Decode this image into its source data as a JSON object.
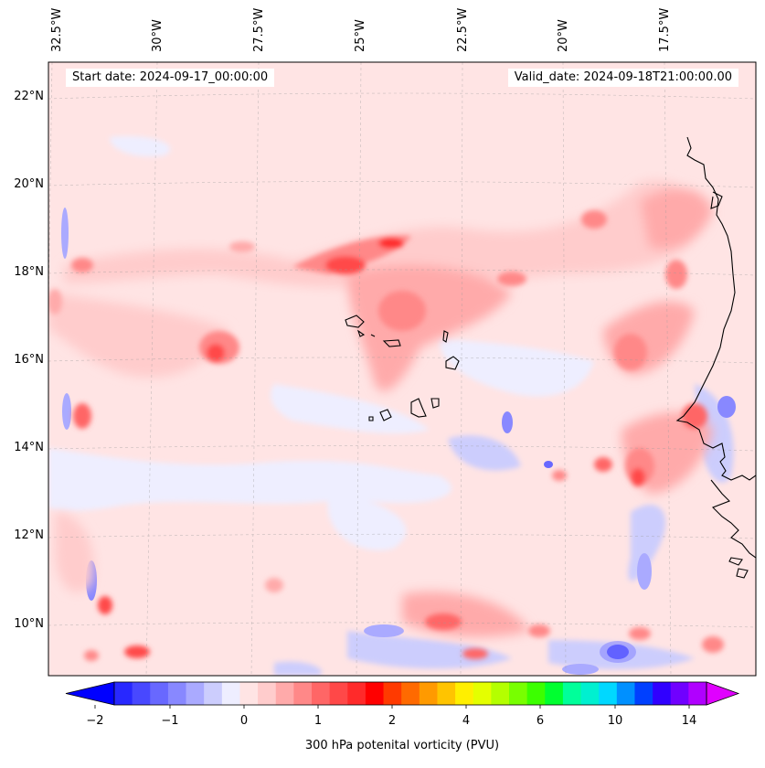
{
  "map": {
    "start_date_text": "Start date: 2024-09-17_00:00:00",
    "valid_date_text": "Valid_date: 2024-09-18T21:00:00.00",
    "lon_labels": [
      "32.5°W",
      "30°W",
      "27.5°W",
      "25°W",
      "22.5°W",
      "20°W",
      "17.5°W"
    ],
    "lat_labels": [
      "22°N",
      "20°N",
      "18°N",
      "16°N",
      "14°N",
      "12°N",
      "10°N"
    ],
    "variable": "300 hPa potential vorticity",
    "units": "PVU"
  },
  "colorbar": {
    "title": "300 hPa potenital vorticity (PVU)",
    "tick_labels": [
      "−2",
      "−1",
      "0",
      "1",
      "2",
      "4",
      "6",
      "10",
      "14"
    ],
    "colors": [
      "#0000ff",
      "#2828ff",
      "#4848ff",
      "#6868ff",
      "#8888ff",
      "#aaaaff",
      "#cccdfd",
      "#eeeeff",
      "#ffe4e4",
      "#ffcccc",
      "#ffaaaa",
      "#ff8888",
      "#ff6666",
      "#ff4848",
      "#ff2a2a",
      "#ff0000",
      "#ff3a00",
      "#ff6a00",
      "#ff9a00",
      "#ffc400",
      "#ffef00",
      "#e4ff00",
      "#b4ff00",
      "#78ff00",
      "#3cff00",
      "#00ff30",
      "#00ff9a",
      "#00f0d0",
      "#00d8ff",
      "#0090ff",
      "#0040ff",
      "#3000ff",
      "#7000ff",
      "#b000ff",
      "#e000ff"
    ],
    "extend": "both"
  },
  "coastline_color": "#000000",
  "colors": {
    "background": "#ffffff",
    "field_base": "#ffe4e4"
  }
}
